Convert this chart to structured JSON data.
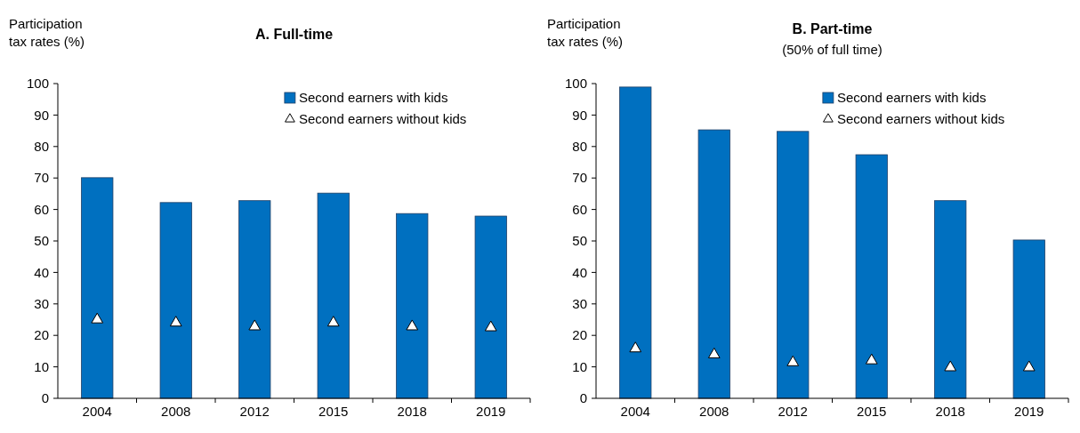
{
  "chart_data": [
    {
      "type": "bar",
      "title": "A. Full-time",
      "ylabel": "Participation tax rates (%)",
      "categories": [
        "2004",
        "2008",
        "2012",
        "2015",
        "2018",
        "2019"
      ],
      "ylim": [
        0,
        100
      ],
      "yticks": [
        0,
        10,
        20,
        30,
        40,
        50,
        60,
        70,
        80,
        90,
        100
      ],
      "legend": "top right",
      "grid": false,
      "series": [
        {
          "name": "Second earners with kids",
          "color": "#0070c0",
          "values": [
            70.1,
            62.2,
            62.8,
            65.2,
            58.7,
            57.9
          ]
        },
        {
          "name": "Second earners without kids",
          "type": "scatter",
          "marker": "triangle",
          "color": "#ffffff",
          "values": [
            25,
            24,
            22.8,
            24,
            22.8,
            22.5
          ]
        }
      ]
    },
    {
      "type": "bar",
      "title": "B. Part-time",
      "subtitle": "(50% of full time)",
      "ylabel": "Participation tax rates (%)",
      "categories": [
        "2004",
        "2008",
        "2012",
        "2015",
        "2018",
        "2019"
      ],
      "ylim": [
        0,
        100
      ],
      "yticks": [
        0,
        10,
        20,
        30,
        40,
        50,
        60,
        70,
        80,
        90,
        100
      ],
      "legend": "top right",
      "grid": false,
      "series": [
        {
          "name": "Second earners with kids",
          "color": "#0070c0",
          "values": [
            98.9,
            85.3,
            84.8,
            77.4,
            62.8,
            50.3
          ]
        },
        {
          "name": "Second earners without kids",
          "type": "scatter",
          "marker": "triangle",
          "color": "#ffffff",
          "values": [
            15.8,
            13.9,
            11.4,
            12,
            9.8,
            9.8
          ]
        }
      ]
    }
  ]
}
